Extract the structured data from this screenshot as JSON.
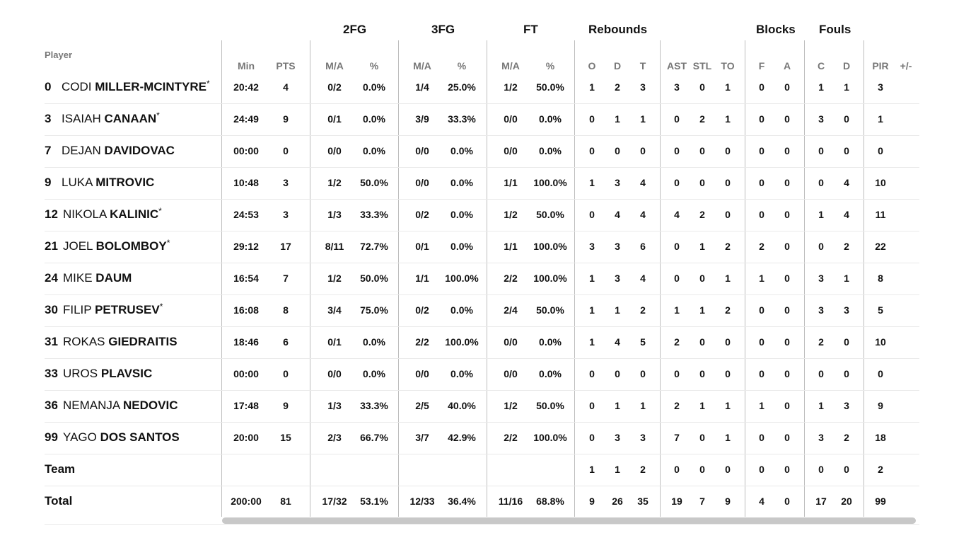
{
  "groups": [
    "2FG",
    "3FG",
    "FT",
    "Rebounds",
    "Blocks",
    "Fouls"
  ],
  "player_header": "Player",
  "column_headers": [
    "Min",
    "PTS",
    "M/A",
    "%",
    "M/A",
    "%",
    "M/A",
    "%",
    "O",
    "D",
    "T",
    "AST",
    "STL",
    "TO",
    "F",
    "A",
    "C",
    "D",
    "PIR",
    "+/-"
  ],
  "rows": [
    {
      "number": "0",
      "first": "CODI",
      "last": "MILLER-MCINTYRE",
      "starter": true,
      "stats": [
        "20:42",
        "4",
        "0/2",
        "0.0%",
        "1/4",
        "25.0%",
        "1/2",
        "50.0%",
        "1",
        "2",
        "3",
        "3",
        "0",
        "1",
        "0",
        "0",
        "1",
        "1",
        "3",
        ""
      ]
    },
    {
      "number": "3",
      "first": "ISAIAH",
      "last": "CANAAN",
      "starter": true,
      "stats": [
        "24:49",
        "9",
        "0/1",
        "0.0%",
        "3/9",
        "33.3%",
        "0/0",
        "0.0%",
        "0",
        "1",
        "1",
        "0",
        "2",
        "1",
        "0",
        "0",
        "3",
        "0",
        "1",
        ""
      ]
    },
    {
      "number": "7",
      "first": "DEJAN",
      "last": "DAVIDOVAC",
      "starter": false,
      "stats": [
        "00:00",
        "0",
        "0/0",
        "0.0%",
        "0/0",
        "0.0%",
        "0/0",
        "0.0%",
        "0",
        "0",
        "0",
        "0",
        "0",
        "0",
        "0",
        "0",
        "0",
        "0",
        "0",
        ""
      ]
    },
    {
      "number": "9",
      "first": "LUKA",
      "last": "MITROVIC",
      "starter": false,
      "stats": [
        "10:48",
        "3",
        "1/2",
        "50.0%",
        "0/0",
        "0.0%",
        "1/1",
        "100.0%",
        "1",
        "3",
        "4",
        "0",
        "0",
        "0",
        "0",
        "0",
        "0",
        "4",
        "10",
        ""
      ]
    },
    {
      "number": "12",
      "first": "NIKOLA",
      "last": "KALINIC",
      "starter": true,
      "stats": [
        "24:53",
        "3",
        "1/3",
        "33.3%",
        "0/2",
        "0.0%",
        "1/2",
        "50.0%",
        "0",
        "4",
        "4",
        "4",
        "2",
        "0",
        "0",
        "0",
        "1",
        "4",
        "11",
        ""
      ]
    },
    {
      "number": "21",
      "first": "JOEL",
      "last": "BOLOMBOY",
      "starter": true,
      "stats": [
        "29:12",
        "17",
        "8/11",
        "72.7%",
        "0/1",
        "0.0%",
        "1/1",
        "100.0%",
        "3",
        "3",
        "6",
        "0",
        "1",
        "2",
        "2",
        "0",
        "0",
        "2",
        "22",
        ""
      ]
    },
    {
      "number": "24",
      "first": "MIKE",
      "last": "DAUM",
      "starter": false,
      "stats": [
        "16:54",
        "7",
        "1/2",
        "50.0%",
        "1/1",
        "100.0%",
        "2/2",
        "100.0%",
        "1",
        "3",
        "4",
        "0",
        "0",
        "1",
        "1",
        "0",
        "3",
        "1",
        "8",
        ""
      ]
    },
    {
      "number": "30",
      "first": "FILIP",
      "last": "PETRUSEV",
      "starter": true,
      "stats": [
        "16:08",
        "8",
        "3/4",
        "75.0%",
        "0/2",
        "0.0%",
        "2/4",
        "50.0%",
        "1",
        "1",
        "2",
        "1",
        "1",
        "2",
        "0",
        "0",
        "3",
        "3",
        "5",
        ""
      ]
    },
    {
      "number": "31",
      "first": "ROKAS",
      "last": "GIEDRAITIS",
      "starter": false,
      "stats": [
        "18:46",
        "6",
        "0/1",
        "0.0%",
        "2/2",
        "100.0%",
        "0/0",
        "0.0%",
        "1",
        "4",
        "5",
        "2",
        "0",
        "0",
        "0",
        "0",
        "2",
        "0",
        "10",
        ""
      ]
    },
    {
      "number": "33",
      "first": "UROS",
      "last": "PLAVSIC",
      "starter": false,
      "stats": [
        "00:00",
        "0",
        "0/0",
        "0.0%",
        "0/0",
        "0.0%",
        "0/0",
        "0.0%",
        "0",
        "0",
        "0",
        "0",
        "0",
        "0",
        "0",
        "0",
        "0",
        "0",
        "0",
        ""
      ]
    },
    {
      "number": "36",
      "first": "NEMANJA",
      "last": "NEDOVIC",
      "starter": false,
      "stats": [
        "17:48",
        "9",
        "1/3",
        "33.3%",
        "2/5",
        "40.0%",
        "1/2",
        "50.0%",
        "0",
        "1",
        "1",
        "2",
        "1",
        "1",
        "1",
        "0",
        "1",
        "3",
        "9",
        ""
      ]
    },
    {
      "number": "99",
      "first": "YAGO",
      "last": "DOS SANTOS",
      "starter": false,
      "stats": [
        "20:00",
        "15",
        "2/3",
        "66.7%",
        "3/7",
        "42.9%",
        "2/2",
        "100.0%",
        "0",
        "3",
        "3",
        "7",
        "0",
        "1",
        "0",
        "0",
        "3",
        "2",
        "18",
        ""
      ]
    }
  ],
  "team_row": {
    "label": "Team",
    "stats": [
      "",
      "",
      "",
      "",
      "",
      "",
      "",
      "",
      "1",
      "1",
      "2",
      "0",
      "0",
      "0",
      "0",
      "0",
      "0",
      "0",
      "2",
      ""
    ]
  },
  "total_row": {
    "label": "Total",
    "stats": [
      "200:00",
      "81",
      "17/32",
      "53.1%",
      "12/33",
      "36.4%",
      "11/16",
      "68.8%",
      "9",
      "26",
      "35",
      "19",
      "7",
      "9",
      "4",
      "0",
      "17",
      "20",
      "99",
      ""
    ]
  },
  "starter_mark": "*"
}
